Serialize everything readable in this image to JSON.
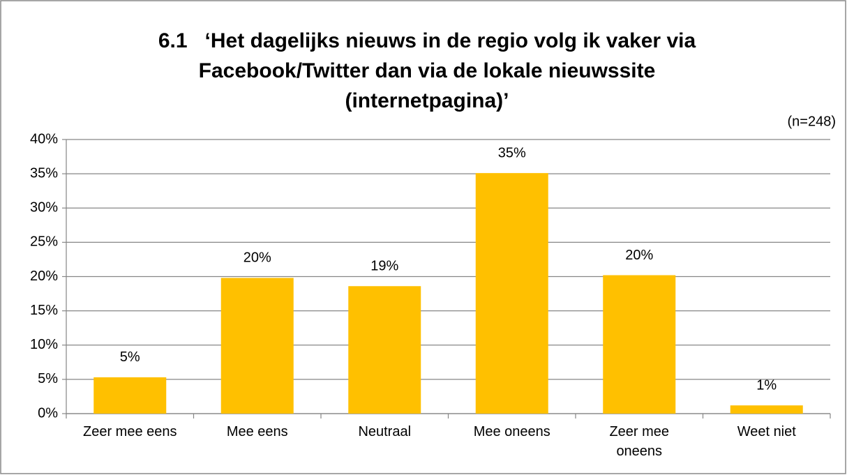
{
  "chart_data": {
    "type": "bar",
    "title": [
      "6.1   ‘Het dagelijks nieuws in de regio volg ik vaker via",
      "Facebook/Twitter dan via de lokale nieuwssite",
      "(internetpagina)’"
    ],
    "annotation": "(n=248)",
    "categories": [
      "Zeer mee eens",
      "Mee eens",
      "Neutraal",
      "Mee oneens",
      "Zeer mee oneens",
      "Weet niet"
    ],
    "values": [
      5.3,
      19.8,
      18.6,
      35.1,
      20.2,
      1.2
    ],
    "value_labels": [
      "5%",
      "20%",
      "19%",
      "35%",
      "20%",
      "1%"
    ],
    "color": "#ffc000",
    "ylim": [
      0,
      40
    ],
    "yticks": [
      {
        "value": 0,
        "label": "0%"
      },
      {
        "value": 5,
        "label": "5%"
      },
      {
        "value": 10,
        "label": "10%"
      },
      {
        "value": 15,
        "label": "15%"
      },
      {
        "value": 20,
        "label": "20%"
      },
      {
        "value": 25,
        "label": "25%"
      },
      {
        "value": 30,
        "label": "30%"
      },
      {
        "value": 35,
        "label": "35%"
      },
      {
        "value": 40,
        "label": "40%"
      }
    ],
    "grid": true
  }
}
